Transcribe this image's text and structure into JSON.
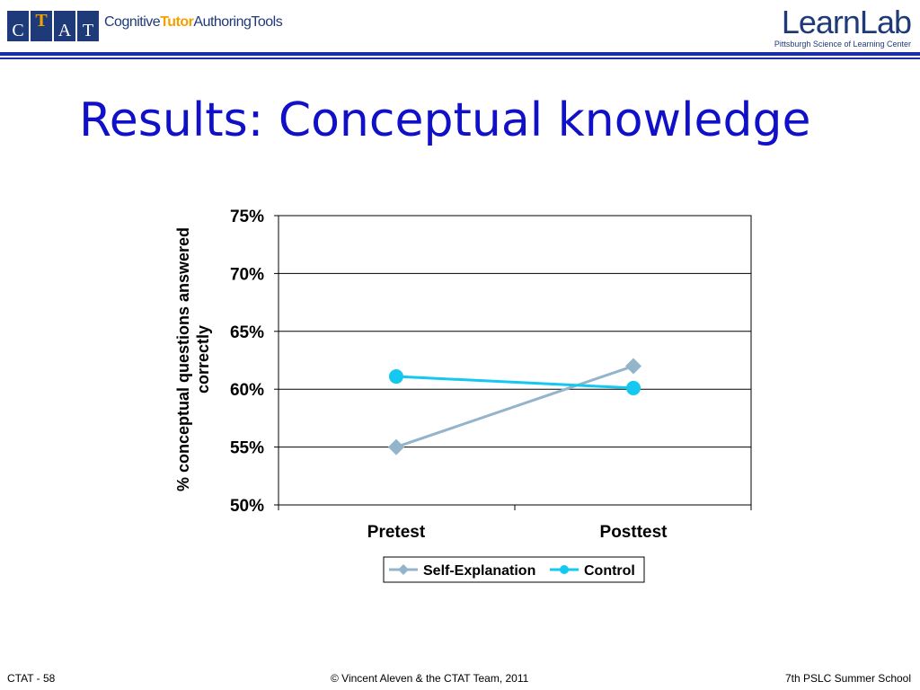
{
  "header": {
    "ctat_letters": [
      "C",
      "T",
      "A",
      "T"
    ],
    "ctat_text_1": "Cognitive",
    "ctat_text_2": "Tutor",
    "ctat_text_3": "AuthoringTools",
    "learnlab_name": "LearnLab",
    "learnlab_sub": "Pittsburgh Science of Learning Center"
  },
  "slide": {
    "title": "Results: Conceptual knowledge"
  },
  "footer": {
    "left": "CTAT - 58",
    "center": "© Vincent Aleven & the CTAT Team, 2011",
    "right": "7th PSLC Summer School"
  },
  "chart_data": {
    "type": "line",
    "title": "",
    "xlabel": "",
    "ylabel": "% conceptual questions answered correctly",
    "categories": [
      "Pretest",
      "Posttest"
    ],
    "ylim": [
      50,
      75
    ],
    "yticks": [
      "50%",
      "55%",
      "60%",
      "65%",
      "70%",
      "75%"
    ],
    "grid": true,
    "legend": "bottom",
    "series": [
      {
        "name": "Self-Explanation",
        "values": [
          55,
          62
        ],
        "color": "#94b4cc",
        "marker": "diamond"
      },
      {
        "name": "Control",
        "values": [
          61.1,
          60.1
        ],
        "color": "#14c8f0",
        "marker": "circle"
      }
    ]
  }
}
